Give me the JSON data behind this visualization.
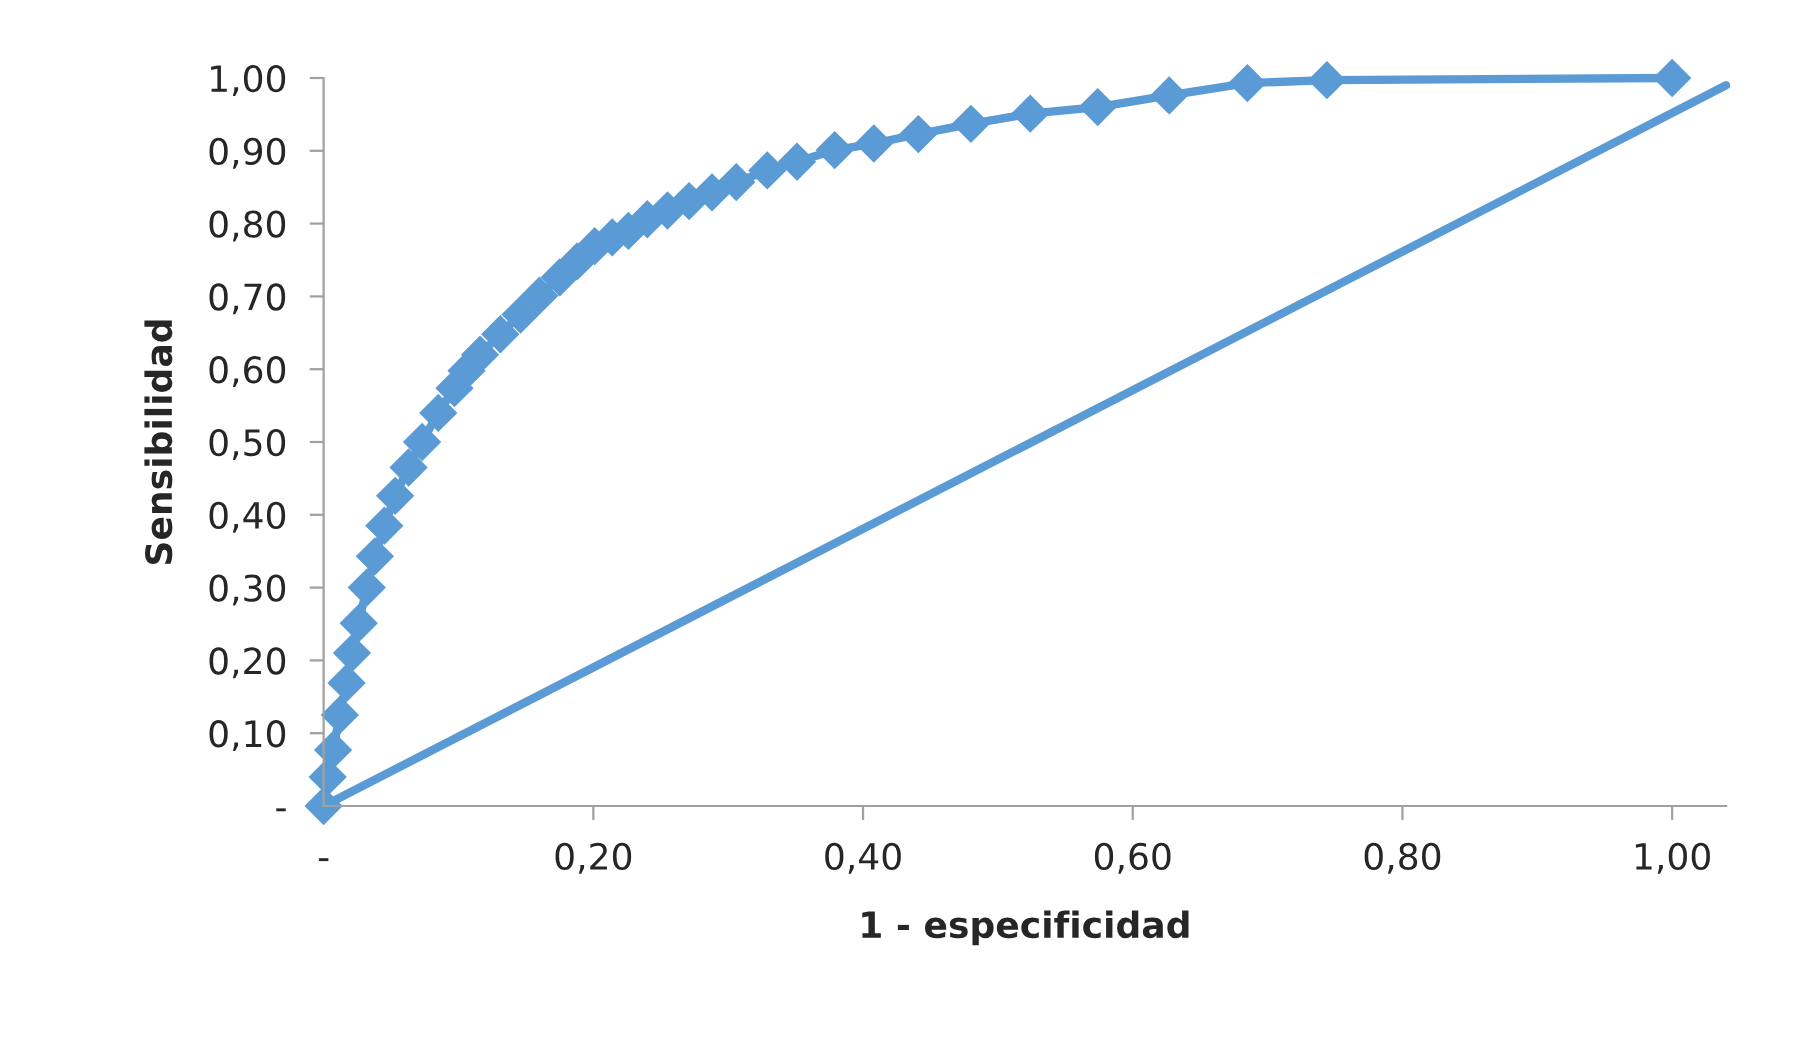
{
  "chart_data": {
    "type": "line",
    "xlabel": "1 - especificidad",
    "ylabel": "Sensibilidad",
    "xlim": [
      0,
      1.04
    ],
    "ylim": [
      0,
      1
    ],
    "xticks": [
      {
        "value": 0,
        "label": "-"
      },
      {
        "value": 0.2,
        "label": "0,20"
      },
      {
        "value": 0.4,
        "label": "0,40"
      },
      {
        "value": 0.6,
        "label": "0,60"
      },
      {
        "value": 0.8,
        "label": "0,80"
      },
      {
        "value": 1,
        "label": "1,00"
      }
    ],
    "yticks": [
      {
        "value": 0,
        "label": "-"
      },
      {
        "value": 0.1,
        "label": "0,10"
      },
      {
        "value": 0.2,
        "label": "0,20"
      },
      {
        "value": 0.3,
        "label": "0,30"
      },
      {
        "value": 0.4,
        "label": "0,40"
      },
      {
        "value": 0.5,
        "label": "0,50"
      },
      {
        "value": 0.6,
        "label": "0,60"
      },
      {
        "value": 0.7,
        "label": "0,70"
      },
      {
        "value": 0.8,
        "label": "0,80"
      },
      {
        "value": 0.9,
        "label": "0,90"
      },
      {
        "value": 1,
        "label": "1,00"
      }
    ],
    "grid": false,
    "legend": false,
    "series": [
      {
        "color": "#5b9bd5",
        "marker": "diamond",
        "x": [
          0,
          0.003,
          0.007,
          0.012,
          0.017,
          0.021,
          0.026,
          0.032,
          0.038,
          0.045,
          0.053,
          0.063,
          0.073,
          0.085,
          0.097,
          0.106,
          0.116,
          0.131,
          0.146,
          0.16,
          0.175,
          0.188,
          0.201,
          0.214,
          0.226,
          0.24,
          0.255,
          0.271,
          0.288,
          0.306,
          0.329,
          0.351,
          0.379,
          0.408,
          0.441,
          0.48,
          0.524,
          0.574,
          0.627,
          0.685,
          0.744,
          1.0
        ],
        "values": [
          0,
          0.04,
          0.077,
          0.125,
          0.169,
          0.21,
          0.251,
          0.3,
          0.343,
          0.385,
          0.426,
          0.465,
          0.5,
          0.54,
          0.574,
          0.598,
          0.62,
          0.648,
          0.675,
          0.701,
          0.726,
          0.748,
          0.769,
          0.781,
          0.79,
          0.806,
          0.818,
          0.831,
          0.843,
          0.857,
          0.873,
          0.885,
          0.901,
          0.91,
          0.923,
          0.937,
          0.951,
          0.96,
          0.976,
          0.993,
          0.997,
          1.0
        ]
      },
      {
        "color": "#5b9bd5",
        "marker": "none",
        "x": [
          0,
          1.04
        ],
        "values": [
          0,
          0.99
        ]
      }
    ]
  }
}
